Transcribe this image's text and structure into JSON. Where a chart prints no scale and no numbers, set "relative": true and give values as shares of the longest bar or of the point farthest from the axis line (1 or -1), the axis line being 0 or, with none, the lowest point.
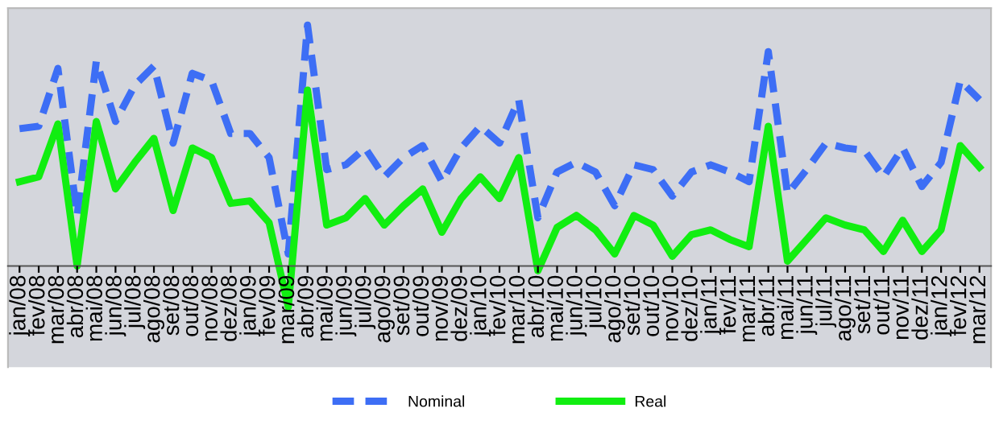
{
  "chart_data": {
    "type": "line",
    "relative": true,
    "categories": [
      "jan/08",
      "fev/08",
      "mar/08",
      "abr/08",
      "mai/08",
      "jun/08",
      "jul/08",
      "ago/08",
      "set/08",
      "out/08",
      "nov/08",
      "dez/08",
      "jan/09",
      "fev/09",
      "mar/09",
      "abr/09",
      "mai/09",
      "jun/09",
      "jul/09",
      "ago/09",
      "set/09",
      "out/09",
      "nov/09",
      "dez/09",
      "jan/10",
      "fev/10",
      "mar/10",
      "abr/10",
      "mai/10",
      "jun/10",
      "jul/10",
      "ago/10",
      "set/10",
      "out/10",
      "nov/10",
      "dez/10",
      "jan/11",
      "fev/11",
      "mar/11",
      "abr/11",
      "mai/11",
      "jun/11",
      "jul/11",
      "ago/11",
      "set/11",
      "out/11",
      "nov/11",
      "dez/11",
      "jan/12",
      "fev/12",
      "mar/12"
    ],
    "series": [
      {
        "name": "Nominal",
        "color": "#3d6ef5",
        "line_style": "dashed",
        "values": [
          0.57,
          0.58,
          0.82,
          0.21,
          0.85,
          0.6,
          0.75,
          0.83,
          0.51,
          0.8,
          0.77,
          0.55,
          0.55,
          0.45,
          0.05,
          1,
          0.4,
          0.42,
          0.49,
          0.37,
          0.45,
          0.5,
          0.35,
          0.49,
          0.58,
          0.51,
          0.69,
          0.2,
          0.39,
          0.43,
          0.39,
          0.25,
          0.42,
          0.4,
          0.29,
          0.39,
          0.42,
          0.39,
          0.35,
          0.89,
          0.3,
          0.4,
          0.51,
          0.49,
          0.48,
          0.37,
          0.49,
          0.33,
          0.43,
          0.77,
          0.69
        ]
      },
      {
        "name": "Real",
        "color": "#11ee11",
        "line_style": "solid",
        "values": [
          0.35,
          0.37,
          0.59,
          0,
          0.6,
          0.32,
          0.43,
          0.53,
          0.23,
          0.49,
          0.45,
          0.26,
          0.27,
          0.18,
          -0.17,
          0.73,
          0.17,
          0.2,
          0.28,
          0.17,
          0.25,
          0.32,
          0.14,
          0.28,
          0.37,
          0.28,
          0.45,
          -0.02,
          0.16,
          0.21,
          0.15,
          0.05,
          0.21,
          0.17,
          0.04,
          0.13,
          0.15,
          0.11,
          0.08,
          0.58,
          0.02,
          0.11,
          0.2,
          0.17,
          0.15,
          0.06,
          0.19,
          0.06,
          0.15,
          0.5,
          0.41
        ]
      }
    ],
    "legend": "bottom",
    "grid": false,
    "marker": "none"
  }
}
